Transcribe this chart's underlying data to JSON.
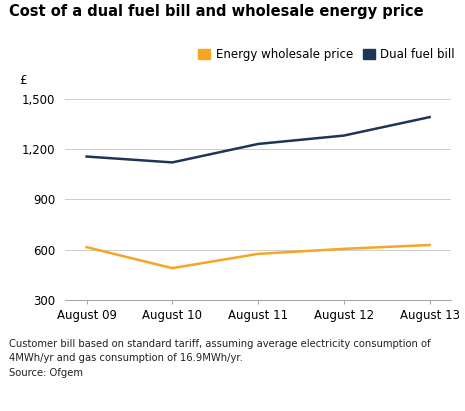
{
  "title": "Cost of a dual fuel bill and wholesale energy price",
  "ylabel": "£",
  "x_labels": [
    "August 09",
    "August 10",
    "August 11",
    "August 12",
    "August 13"
  ],
  "x_values": [
    0,
    1,
    2,
    3,
    4
  ],
  "dual_fuel_bill": [
    1155,
    1120,
    1230,
    1280,
    1390
  ],
  "energy_wholesale": [
    615,
    490,
    575,
    605,
    628
  ],
  "dual_fuel_color": "#1d3557",
  "energy_wholesale_color": "#f5a623",
  "ylim": [
    300,
    1500
  ],
  "yticks": [
    300,
    600,
    900,
    1200,
    1500
  ],
  "ytick_labels": [
    "300",
    "600",
    "900",
    "1,200",
    "1,500"
  ],
  "legend_labels": [
    "Energy wholesale price",
    "Dual fuel bill"
  ],
  "footnote_line1": "Customer bill based on standard tariff, assuming average electricity consumption of",
  "footnote_line2": "4MWh/yr and gas consumption of 16.9MWh/yr.",
  "footnote_line3": "Source: Ofgem",
  "line_width": 1.8,
  "background_color": "#ffffff",
  "grid_color": "#cccccc",
  "title_fontsize": 10.5,
  "axis_fontsize": 8.5,
  "legend_fontsize": 8.5,
  "footnote_fontsize": 7.2
}
